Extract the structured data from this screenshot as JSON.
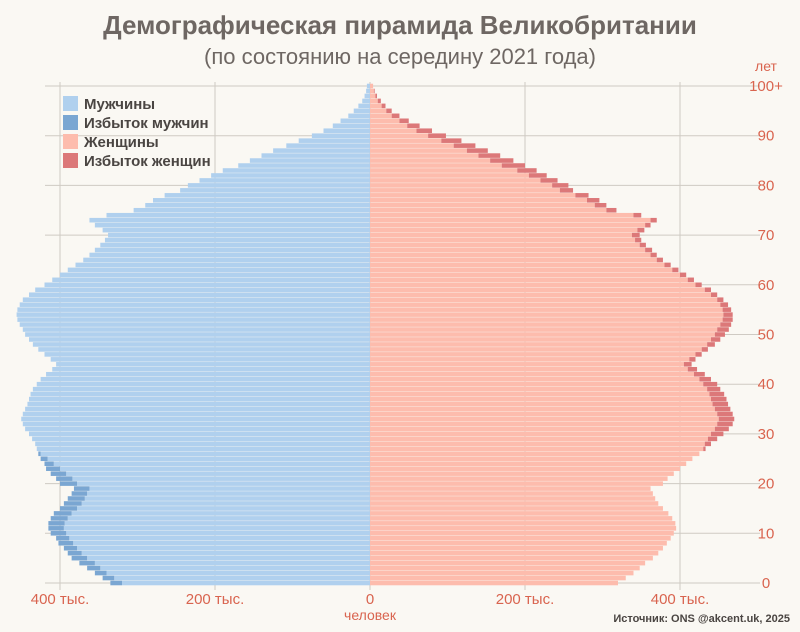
{
  "chart_data": {
    "type": "bar",
    "orientation": "horizontal-population-pyramid",
    "title": "Демографическая пирамида Великобритании",
    "subtitle": "(по состоянию на середину 2021 года)",
    "xlabel": "человек",
    "ylabel": "лет",
    "xlim": [
      -450000,
      450000
    ],
    "ylim": [
      0,
      100
    ],
    "x_ticks": [
      {
        "value": -400000,
        "label": "400 тыс."
      },
      {
        "value": -200000,
        "label": "200 тыс."
      },
      {
        "value": 0,
        "label": "0"
      },
      {
        "value": 200000,
        "label": "200 тыс."
      },
      {
        "value": 400000,
        "label": "400 тыс."
      }
    ],
    "y_ticks": [
      {
        "value": 0,
        "label": "0"
      },
      {
        "value": 10,
        "label": "10"
      },
      {
        "value": 20,
        "label": "20"
      },
      {
        "value": 30,
        "label": "30"
      },
      {
        "value": 40,
        "label": "40"
      },
      {
        "value": 50,
        "label": "50"
      },
      {
        "value": 60,
        "label": "60"
      },
      {
        "value": 70,
        "label": "70"
      },
      {
        "value": 80,
        "label": "80"
      },
      {
        "value": 90,
        "label": "90"
      },
      {
        "value": 100,
        "label": "100+"
      }
    ],
    "grid": true,
    "legend_position": "top-left",
    "legend": [
      {
        "label": "Мужчины",
        "color": "#b0d0ee"
      },
      {
        "label": "Избыток мужчин",
        "color": "#7aa6d2"
      },
      {
        "label": "Женщины",
        "color": "#fdbcad"
      },
      {
        "label": "Избыток женщин",
        "color": "#dc7879"
      }
    ],
    "ages": [
      0,
      1,
      2,
      3,
      4,
      5,
      6,
      7,
      8,
      9,
      10,
      11,
      12,
      13,
      14,
      15,
      16,
      17,
      18,
      19,
      20,
      21,
      22,
      23,
      24,
      25,
      26,
      27,
      28,
      29,
      30,
      31,
      32,
      33,
      34,
      35,
      36,
      37,
      38,
      39,
      40,
      41,
      42,
      43,
      44,
      45,
      46,
      47,
      48,
      49,
      50,
      51,
      52,
      53,
      54,
      55,
      56,
      57,
      58,
      59,
      60,
      61,
      62,
      63,
      64,
      65,
      66,
      67,
      68,
      69,
      70,
      71,
      72,
      73,
      74,
      75,
      76,
      77,
      78,
      79,
      80,
      81,
      82,
      83,
      84,
      85,
      86,
      87,
      88,
      89,
      90,
      91,
      92,
      93,
      94,
      95,
      96,
      97,
      98,
      99,
      100
    ],
    "series": [
      {
        "name": "Мужчины",
        "values": [
          335000,
          345000,
          355000,
          365000,
          375000,
          385000,
          390000,
          395000,
          402000,
          405000,
          412000,
          415000,
          415000,
          412000,
          408000,
          400000,
          395000,
          390000,
          385000,
          382000,
          400000,
          405000,
          412000,
          418000,
          420000,
          425000,
          428000,
          430000,
          432000,
          436000,
          440000,
          445000,
          448000,
          450000,
          448000,
          445000,
          442000,
          440000,
          438000,
          435000,
          430000,
          425000,
          418000,
          410000,
          405000,
          412000,
          420000,
          428000,
          435000,
          440000,
          445000,
          448000,
          452000,
          455000,
          456000,
          455000,
          452000,
          448000,
          440000,
          432000,
          420000,
          410000,
          400000,
          390000,
          380000,
          370000,
          362000,
          355000,
          348000,
          342000,
          338000,
          345000,
          355000,
          362000,
          340000,
          305000,
          290000,
          280000,
          265000,
          245000,
          235000,
          220000,
          205000,
          190000,
          170000,
          155000,
          140000,
          125000,
          108000,
          92000,
          75000,
          60000,
          48000,
          38000,
          28000,
          21000,
          15000,
          10000,
          7000,
          5000,
          4000
        ]
      },
      {
        "name": "Женщины",
        "values": [
          320000,
          330000,
          340000,
          348000,
          355000,
          365000,
          372000,
          378000,
          383000,
          388000,
          392000,
          395000,
          394000,
          390000,
          385000,
          378000,
          372000,
          368000,
          365000,
          362000,
          378000,
          384000,
          392000,
          400000,
          408000,
          416000,
          425000,
          433000,
          440000,
          448000,
          456000,
          463000,
          468000,
          470000,
          468000,
          465000,
          462000,
          460000,
          457000,
          452000,
          448000,
          440000,
          432000,
          422000,
          415000,
          420000,
          428000,
          436000,
          445000,
          452000,
          458000,
          463000,
          466000,
          468000,
          468000,
          466000,
          462000,
          456000,
          448000,
          440000,
          428000,
          418000,
          408000,
          398000,
          388000,
          378000,
          370000,
          364000,
          356000,
          350000,
          348000,
          354000,
          362000,
          370000,
          350000,
          318000,
          305000,
          296000,
          282000,
          262000,
          256000,
          242000,
          228000,
          215000,
          200000,
          185000,
          168000,
          152000,
          136000,
          118000,
          98000,
          80000,
          64000,
          50000,
          38000,
          28000,
          20000,
          14000,
          9000,
          6000,
          4000
        ]
      }
    ],
    "annotation": "Источник: ONS  @akcent.uk, 2025"
  }
}
